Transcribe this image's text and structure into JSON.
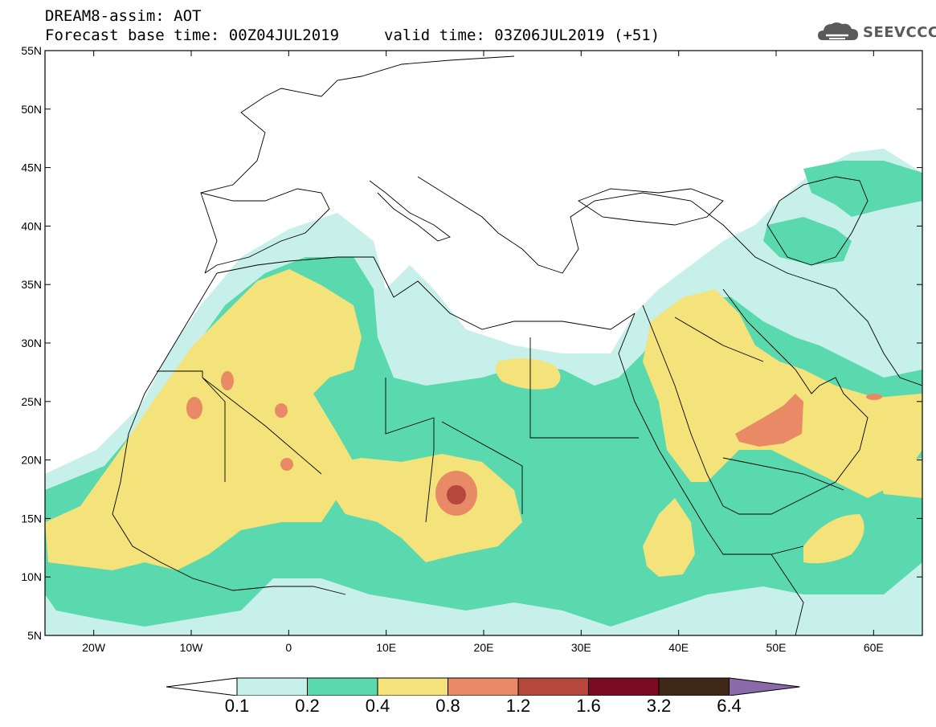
{
  "header": {
    "title_line1": "DREAM8-assim: AOT",
    "title_line2": "Forecast base time: 00Z04JUL2019",
    "valid_time": "valid time: 03Z06JUL2019 (+51)",
    "logo_text": "SEEVCCC"
  },
  "map": {
    "variable": "AOT",
    "lon_range": [
      -25,
      65
    ],
    "lat_range": [
      5,
      55
    ],
    "lat_labels": [
      "55N",
      "50N",
      "45N",
      "40N",
      "35N",
      "30N",
      "25N",
      "20N",
      "15N",
      "10N",
      "5N"
    ],
    "lon_labels": [
      "20W",
      "10W",
      "0",
      "10E",
      "20E",
      "30E",
      "40E",
      "50E",
      "60E"
    ]
  },
  "colorbar": {
    "levels": [
      "0.1",
      "0.2",
      "0.4",
      "0.8",
      "1.2",
      "1.6",
      "3.2",
      "6.4"
    ],
    "colors": [
      "#c8f0ea",
      "#5ad9ae",
      "#f4e27a",
      "#e98a66",
      "#b5473c",
      "#7b0a22",
      "#3f2818",
      "#8a6aa8"
    ]
  }
}
